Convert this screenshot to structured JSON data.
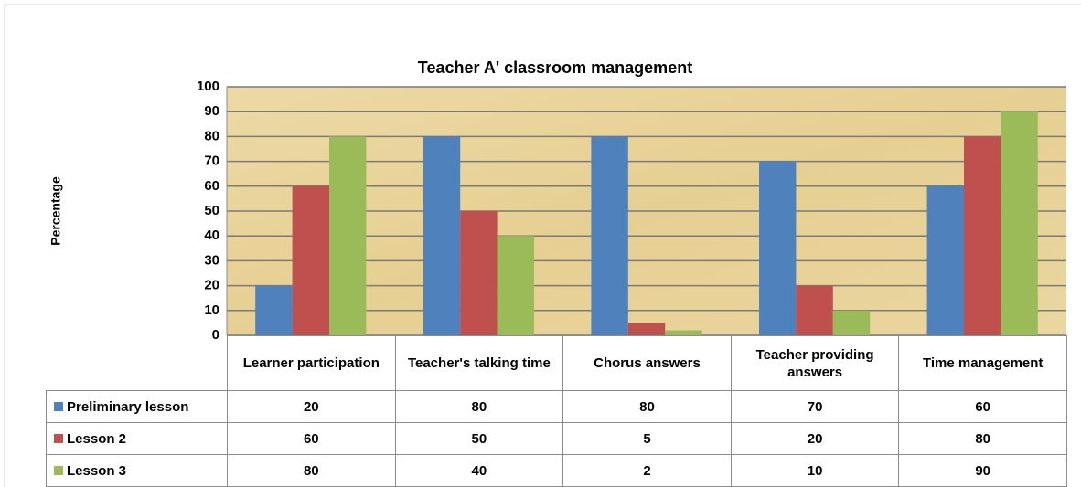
{
  "chart_data": {
    "type": "bar",
    "title": "Teacher A' classroom management",
    "y_label": "Percentage",
    "categories": [
      "Learner participation",
      "Teacher's talking time",
      "Chorus answers",
      "Teacher providing answers",
      "Time management"
    ],
    "series": [
      {
        "name": "Preliminary lesson",
        "color": "#4f81bd",
        "values": [
          20,
          80,
          80,
          70,
          60
        ]
      },
      {
        "name": "Lesson 2",
        "color": "#c0504d",
        "values": [
          60,
          50,
          5,
          20,
          80
        ]
      },
      {
        "name": "Lesson 3",
        "color": "#9bbb59",
        "values": [
          80,
          40,
          2,
          10,
          90
        ]
      }
    ],
    "ylim": [
      0,
      100
    ],
    "yticks": [
      0,
      10,
      20,
      30,
      40,
      50,
      60,
      70,
      80,
      90,
      100
    ],
    "grid": true
  }
}
